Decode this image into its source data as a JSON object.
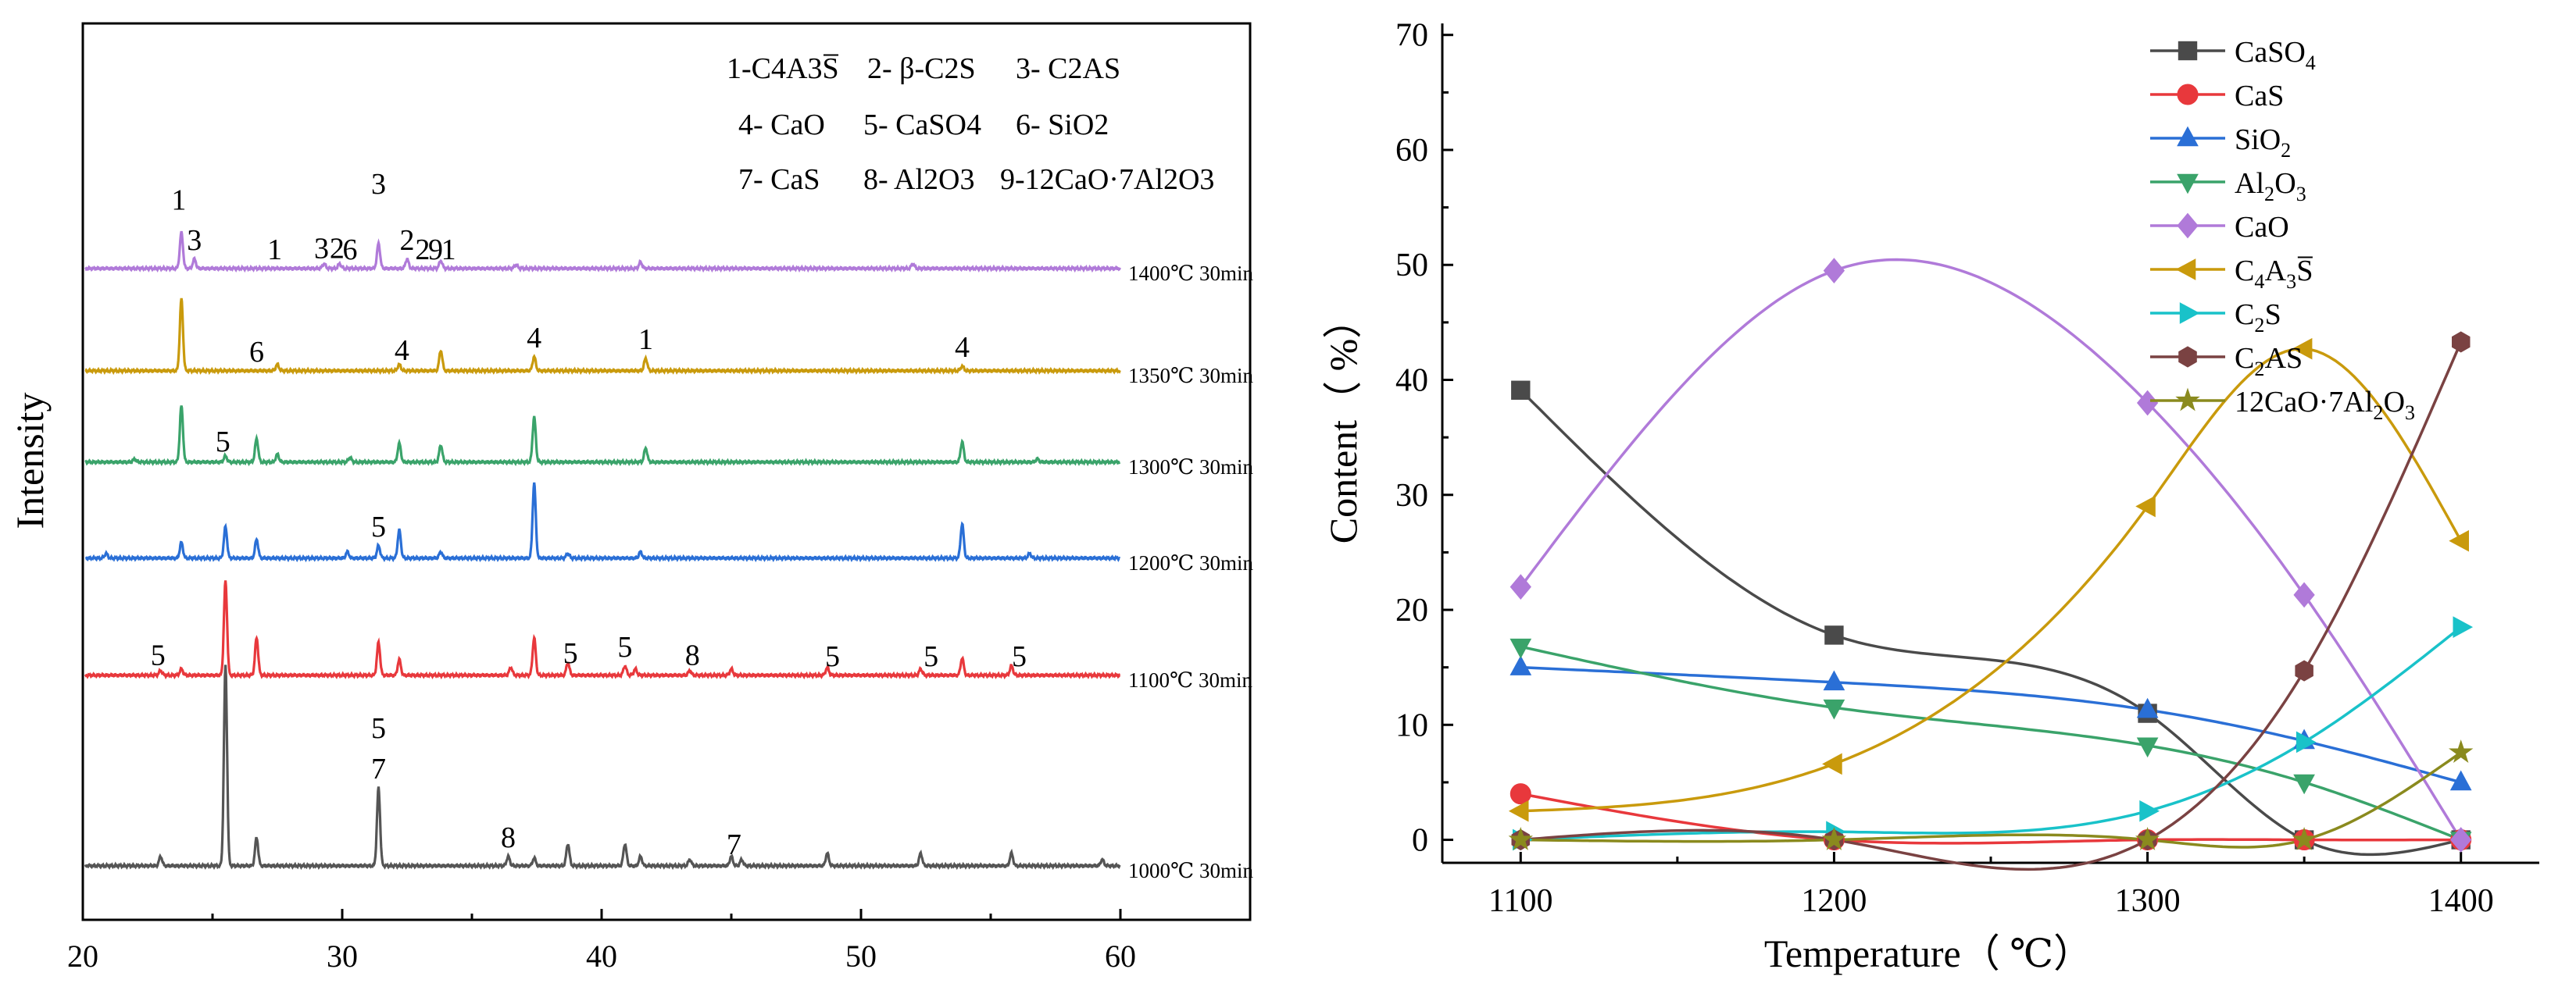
{
  "chart_data": [
    {
      "type": "line",
      "title": "",
      "xlabel": "",
      "ylabel": "Intensity",
      "xlim": [
        20,
        65
      ],
      "xticks": [
        20,
        30,
        40,
        50,
        60
      ],
      "xtick_labels": [
        "20",
        "30",
        "40",
        "50",
        "60"
      ],
      "phase_key": [
        "1-C4A3S̅",
        "2- β-C2S",
        "3- C2AS",
        "4- CaO",
        "5- CaSO4",
        "6- SiO2",
        "7- CaS",
        "8- Al2O3",
        "9-12CaO·7Al2O3"
      ],
      "series": [
        {
          "name": "1000℃ 30min",
          "color": "#555555",
          "baseline": 0.08,
          "peaks": [
            [
              23.0,
              0.3
            ],
            [
              25.5,
              6.4
            ],
            [
              26.7,
              0.9
            ],
            [
              31.4,
              2.5
            ],
            [
              36.4,
              0.3
            ],
            [
              37.4,
              0.25
            ],
            [
              38.7,
              0.7
            ],
            [
              40.9,
              0.7
            ],
            [
              41.5,
              0.3
            ],
            [
              43.4,
              0.2
            ],
            [
              45.0,
              0.3
            ],
            [
              45.4,
              0.2
            ],
            [
              48.7,
              0.4
            ],
            [
              52.3,
              0.4
            ],
            [
              55.8,
              0.4
            ],
            [
              59.3,
              0.2
            ]
          ],
          "annotations": [
            {
              "text": "8",
              "x": 36.4
            },
            {
              "text": "5",
              "x": 31.4,
              "stack": 2
            },
            {
              "text": "7",
              "x": 31.4,
              "stack": 1
            },
            {
              "text": "7",
              "x": 45.1
            }
          ]
        },
        {
          "name": "1100℃ 30min",
          "color": "#e8383c",
          "baseline": 0.08,
          "peaks": [
            [
              23.0,
              0.15
            ],
            [
              23.8,
              0.2
            ],
            [
              25.5,
              3.0
            ],
            [
              26.7,
              1.2
            ],
            [
              31.4,
              1.05
            ],
            [
              32.2,
              0.5
            ],
            [
              36.5,
              0.25
            ],
            [
              37.4,
              1.2
            ],
            [
              38.7,
              0.4
            ],
            [
              40.9,
              0.3
            ],
            [
              41.3,
              0.2
            ],
            [
              43.4,
              0.15
            ],
            [
              45.0,
              0.2
            ],
            [
              48.7,
              0.25
            ],
            [
              52.3,
              0.2
            ],
            [
              53.9,
              0.55
            ],
            [
              55.8,
              0.3
            ]
          ],
          "annotations": [
            {
              "text": "5",
              "x": 22.9
            },
            {
              "text": "5",
              "x": 38.8
            },
            {
              "text": "5",
              "x": 40.9
            },
            {
              "text": "8",
              "x": 43.5
            },
            {
              "text": "5",
              "x": 48.9
            },
            {
              "text": "5",
              "x": 52.7
            },
            {
              "text": "5",
              "x": 56.1
            }
          ]
        },
        {
          "name": "1200℃ 30min",
          "color": "#2a6fd6",
          "baseline": 0.08,
          "peaks": [
            [
              20.9,
              0.15
            ],
            [
              23.8,
              0.5
            ],
            [
              25.5,
              1.0
            ],
            [
              26.7,
              0.6
            ],
            [
              30.2,
              0.2
            ],
            [
              31.4,
              0.4
            ],
            [
              32.2,
              0.9
            ],
            [
              33.8,
              0.2
            ],
            [
              37.4,
              2.4
            ],
            [
              38.7,
              0.15
            ],
            [
              41.5,
              0.2
            ],
            [
              53.9,
              1.1
            ],
            [
              56.5,
              0.15
            ]
          ],
          "annotations": [
            {
              "text": "5",
              "x": 31.4
            }
          ]
        },
        {
          "name": "1300℃ 30min",
          "color": "#3aa36a",
          "baseline": 0.08,
          "peaks": [
            [
              22.0,
              0.1
            ],
            [
              23.8,
              1.8
            ],
            [
              25.5,
              0.2
            ],
            [
              26.7,
              0.75
            ],
            [
              27.5,
              0.25
            ],
            [
              30.3,
              0.15
            ],
            [
              32.2,
              0.6
            ],
            [
              33.8,
              0.55
            ],
            [
              37.4,
              1.45
            ],
            [
              41.7,
              0.45
            ],
            [
              53.9,
              0.65
            ],
            [
              56.8,
              0.1
            ]
          ],
          "annotations": [
            {
              "text": "5",
              "x": 25.4
            }
          ]
        },
        {
          "name": "1350℃ 30min",
          "color": "#c99a0c",
          "baseline": 0.08,
          "peaks": [
            [
              23.8,
              2.3
            ],
            [
              27.5,
              0.2
            ],
            [
              32.2,
              0.2
            ],
            [
              33.8,
              0.65
            ],
            [
              37.4,
              0.45
            ],
            [
              41.7,
              0.4
            ],
            [
              53.9,
              0.15
            ]
          ],
          "annotations": [
            {
              "text": "6",
              "x": 26.7
            },
            {
              "text": "4",
              "x": 32.3
            },
            {
              "text": "4",
              "x": 37.4
            },
            {
              "text": "1",
              "x": 41.7
            },
            {
              "text": "4",
              "x": 53.9
            }
          ]
        },
        {
          "name": "1400℃ 30min",
          "color": "#b07ad9",
          "baseline": 0.08,
          "peaks": [
            [
              23.8,
              1.15
            ],
            [
              24.3,
              0.3
            ],
            [
              29.3,
              0.15
            ],
            [
              29.9,
              0.15
            ],
            [
              31.4,
              0.8
            ],
            [
              32.5,
              0.3
            ],
            [
              33.8,
              0.25
            ],
            [
              36.7,
              0.12
            ],
            [
              41.5,
              0.2
            ],
            [
              52.0,
              0.15
            ]
          ],
          "annotations": [
            {
              "text": "1",
              "x": 23.7,
              "stack": 2
            },
            {
              "text": "3",
              "x": 24.3
            },
            {
              "text": "1",
              "x": 27.4
            },
            {
              "text": "3",
              "x": 29.2
            },
            {
              "text": "2",
              "x": 29.8
            },
            {
              "text": "6",
              "x": 30.3
            },
            {
              "text": "3",
              "x": 31.4,
              "stack": 2
            },
            {
              "text": "2",
              "x": 32.5
            },
            {
              "text": "2",
              "x": 33.1
            },
            {
              "text": "9",
              "x": 33.6
            },
            {
              "text": "1",
              "x": 34.1
            }
          ]
        }
      ]
    },
    {
      "type": "line",
      "title": "",
      "xlabel": "Temperature（ ℃）",
      "ylabel": "Content（ %）",
      "xlim": [
        1075,
        1425
      ],
      "ylim": [
        -2,
        71
      ],
      "xticks": [
        1100,
        1200,
        1300,
        1400
      ],
      "yticks": [
        0,
        10,
        20,
        30,
        40,
        50,
        60,
        70
      ],
      "categories": [
        1100,
        1200,
        1300,
        1350,
        1400
      ],
      "legend_position": "top-right",
      "series": [
        {
          "name": "CaSO4",
          "label": "CaSO",
          "sub": "4",
          "marker": "square",
          "color": "#4a4a4a",
          "values": [
            39.1,
            17.8,
            11.0,
            0.0,
            0.0
          ]
        },
        {
          "name": "CaS",
          "label": "CaS",
          "sub": "",
          "marker": "circle",
          "color": "#e8383c",
          "values": [
            4.0,
            0.0,
            0.0,
            0.0,
            0.0
          ]
        },
        {
          "name": "SiO2",
          "label": "SiO",
          "sub": "2",
          "marker": "triangle-up",
          "color": "#2a6fd6",
          "values": [
            15.0,
            13.7,
            11.3,
            8.6,
            5.0
          ]
        },
        {
          "name": "Al2O3",
          "label": "Al",
          "sub": "2",
          "label2": "O",
          "sub2": "3",
          "marker": "triangle-down",
          "color": "#3aa36a",
          "values": [
            16.8,
            11.5,
            8.2,
            5.0,
            0.0
          ]
        },
        {
          "name": "CaO",
          "label": "CaO",
          "sub": "",
          "marker": "diamond",
          "color": "#b07ad9",
          "values": [
            22.0,
            49.5,
            38.0,
            21.3,
            0.0
          ]
        },
        {
          "name": "C4A3S̅",
          "label": "C",
          "sub": "4",
          "label2": "A",
          "sub2": "3",
          "label3": "S̅",
          "marker": "triangle-left",
          "color": "#c99a0c",
          "values": [
            2.5,
            6.6,
            29.0,
            42.7,
            26.0
          ]
        },
        {
          "name": "C2S",
          "label": "C",
          "sub": "2",
          "label2": "S",
          "marker": "triangle-right",
          "color": "#19c2c9",
          "values": [
            0.0,
            0.7,
            2.5,
            8.5,
            18.5
          ]
        },
        {
          "name": "C2AS",
          "label": "C",
          "sub": "2",
          "label2": "AS",
          "marker": "hexagon",
          "color": "#7a4242",
          "values": [
            0.0,
            0.0,
            0.0,
            14.7,
            43.3
          ]
        },
        {
          "name": "12CaO·7Al2O3",
          "label": "12CaO·7Al",
          "sub": "2",
          "label2": "O",
          "sub2": "3",
          "marker": "star",
          "color": "#8a8a1e",
          "values": [
            0.0,
            0.0,
            0.0,
            0.0,
            7.6
          ]
        }
      ]
    }
  ]
}
